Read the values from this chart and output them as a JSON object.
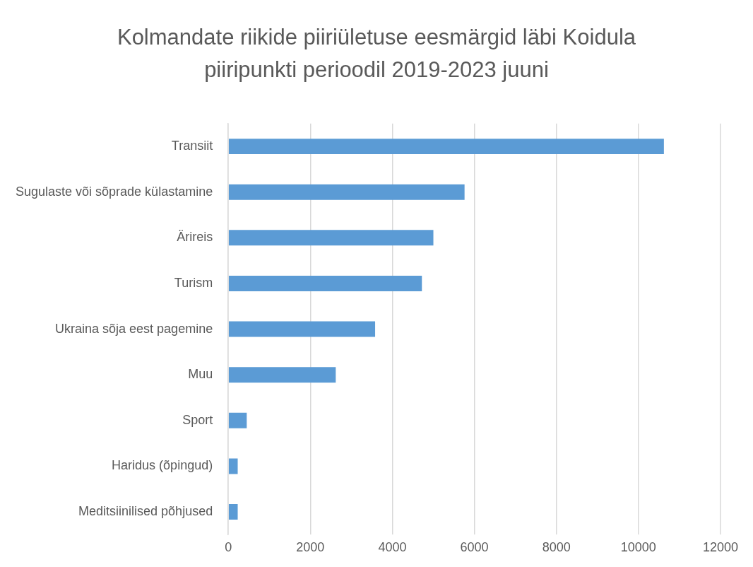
{
  "chart_data": {
    "type": "bar",
    "orientation": "horizontal",
    "title": "Kolmandate riikide piiriületuse eesmärgid läbi Koidula piiripunkti perioodil 2019-2023 juuni",
    "categories": [
      "Transiit",
      "Sugulaste või sõprade külastamine",
      "Ärireis",
      "Turism",
      "Ukraina sõja eest pagemine",
      "Muu",
      "Sport",
      "Haridus (õpingud)",
      "Meditsiinilised põhjused"
    ],
    "values": [
      10620,
      5760,
      5000,
      4720,
      3580,
      2620,
      450,
      230,
      230
    ],
    "color": "#5b9bd5",
    "xlim": [
      0,
      12000
    ],
    "xticks": [
      0,
      2000,
      4000,
      6000,
      8000,
      10000,
      12000
    ],
    "grid": "x"
  }
}
